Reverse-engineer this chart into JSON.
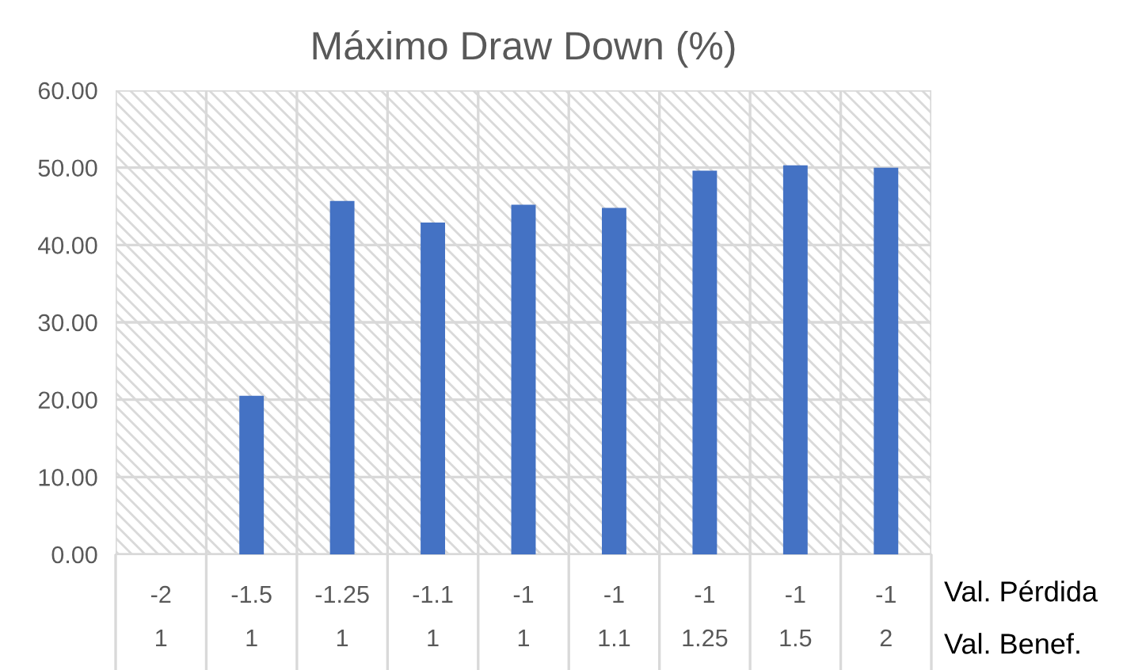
{
  "chart_data": {
    "type": "bar",
    "title": "Máximo Draw Down (%)",
    "categories": [
      "-2\n1",
      "-1.5\n1",
      "-1.25\n1",
      "-1.1\n1",
      "-1\n1",
      "-1\n1.1",
      "-1\n1.25",
      "-1\n1.5",
      "-1\n2"
    ],
    "values": [
      0,
      20.5,
      45.7,
      42.9,
      45.2,
      44.8,
      49.6,
      50.3,
      50.0
    ],
    "color": "#4472c4",
    "ylim": [
      0,
      60
    ],
    "yticks": [
      {
        "value": 0,
        "label": "0.00"
      },
      {
        "value": 10,
        "label": "10.00"
      },
      {
        "value": 20,
        "label": "20.00"
      },
      {
        "value": 30,
        "label": "30.00"
      },
      {
        "value": 40,
        "label": "40.00"
      },
      {
        "value": 50,
        "label": "50.00"
      },
      {
        "value": 60,
        "label": "60.00"
      }
    ],
    "grid": true,
    "annotations": [
      "Val. Pérdida",
      "Val. Benef."
    ]
  }
}
